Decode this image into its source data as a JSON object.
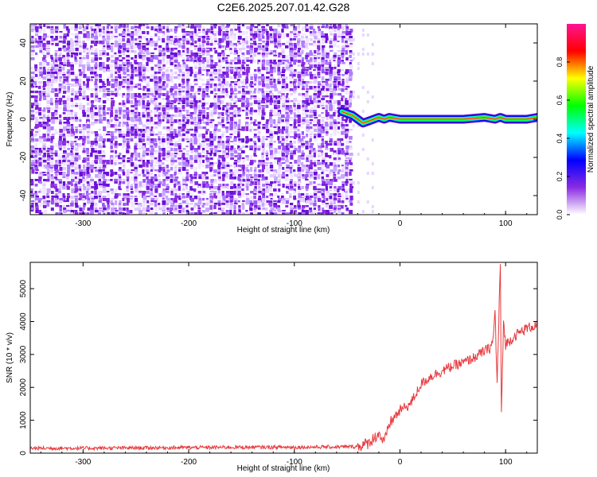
{
  "title": "C2E6.2025.207.01.42.G28",
  "chart_data": [
    {
      "type": "heatmap",
      "xlabel": "Height of straight line (km)",
      "ylabel": "Frequency (Hz)",
      "xlim": [
        -350,
        130
      ],
      "ylim": [
        -50,
        50
      ],
      "xticks": [
        -300,
        -200,
        -100,
        0,
        100
      ],
      "yticks": [
        -40,
        -20,
        0,
        20,
        40
      ],
      "colorbar": {
        "label": "Normalized spectral amplitude",
        "range": [
          0.0,
          1.0
        ],
        "ticks": [
          0.0,
          0.2,
          0.4,
          0.6,
          0.8
        ],
        "colormap": [
          "#ffffff",
          "#8a2be2",
          "#0000ff",
          "#00ffff",
          "#00ff00",
          "#ffff00",
          "#ff0000",
          "#ff1493"
        ]
      },
      "noise_region_x": [
        -350,
        -45
      ],
      "signal_track": {
        "x": [
          -55,
          -50,
          -45,
          -40,
          -35,
          -30,
          -25,
          -20,
          -15,
          -10,
          0,
          20,
          40,
          60,
          80,
          90,
          95,
          100,
          120,
          130
        ],
        "frequency": [
          4,
          3,
          2,
          0,
          -2,
          -1,
          0,
          1,
          0,
          1,
          0,
          0,
          0,
          0,
          1,
          0,
          1,
          0,
          0,
          1
        ]
      }
    },
    {
      "type": "line",
      "xlabel": "Height of straight line (km)",
      "ylabel": "SNR (10 * v/v)",
      "xlim": [
        -350,
        130
      ],
      "ylim": [
        0,
        5800
      ],
      "xticks": [
        -300,
        -200,
        -100,
        0,
        100
      ],
      "yticks": [
        0,
        1000,
        2000,
        3000,
        4000,
        5000
      ],
      "color": "#e8383c",
      "series": [
        {
          "x": [
            -350,
            -300,
            -250,
            -200,
            -150,
            -100,
            -60,
            -40,
            -30,
            -20,
            -15,
            -10,
            0,
            10,
            20,
            30,
            40,
            50,
            60,
            70,
            80,
            85,
            88,
            90,
            92,
            94,
            95,
            96,
            98,
            100,
            110,
            120,
            130
          ],
          "y": [
            150,
            150,
            160,
            170,
            180,
            180,
            190,
            200,
            300,
            600,
            300,
            900,
            1300,
            1500,
            2100,
            2350,
            2500,
            2650,
            2750,
            2900,
            3100,
            3200,
            3400,
            4300,
            2100,
            4600,
            5800,
            1100,
            4000,
            3300,
            3600,
            3800,
            3900
          ]
        }
      ]
    }
  ]
}
